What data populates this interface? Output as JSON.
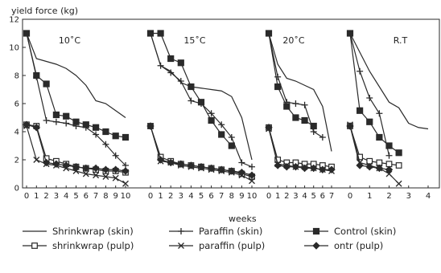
{
  "chart_data": {
    "type": "line",
    "ylabel": "yield force (kg)",
    "xlabel": "weeks",
    "ylim": [
      0,
      12
    ],
    "y_ticks": [
      "0",
      "2",
      "4",
      "6",
      "8",
      "10",
      "12"
    ],
    "grid": false,
    "legend_position": "bottom",
    "legend": [
      {
        "name": "Shrinkwrap (skin)",
        "marker": "none"
      },
      {
        "name": "shrinkwrap (pulp)",
        "marker": "square"
      },
      {
        "name": "Paraffin (skin)",
        "marker": "plus"
      },
      {
        "name": "paraffin (pulp)",
        "marker": "x"
      },
      {
        "name": "Control (skin)",
        "marker": "x-square"
      },
      {
        "name": "ontr (pulp)",
        "marker": "diamond"
      }
    ],
    "panels": [
      {
        "title": "10˚C",
        "xlim": [
          0,
          10
        ],
        "x_ticks": [
          "0",
          "1",
          "2",
          "3",
          "4",
          "5",
          "6",
          "7",
          "8",
          "9",
          "10"
        ],
        "series": [
          {
            "name": "Shrinkwrap (skin)",
            "x": [
              0,
              1,
              3,
              4,
              5,
              6,
              7,
              8,
              9,
              10
            ],
            "y": [
              11,
              9.2,
              8.8,
              8.5,
              8.0,
              7.3,
              6.2,
              6.0,
              5.5,
              5.0
            ]
          },
          {
            "name": "shrinkwrap (pulp)",
            "x": [
              0,
              1,
              2,
              3,
              4,
              5,
              6,
              7,
              8,
              9,
              10
            ],
            "y": [
              4.5,
              4.4,
              2.1,
              1.9,
              1.7,
              1.5,
              1.4,
              1.3,
              1.2,
              1.2,
              1.1
            ]
          },
          {
            "name": "Paraffin (skin)",
            "x": [
              0,
              1,
              2,
              3,
              4,
              5,
              6,
              7,
              8,
              9,
              10
            ],
            "y": [
              11,
              7.9,
              4.8,
              4.7,
              4.6,
              4.4,
              4.3,
              3.8,
              3.1,
              2.3,
              1.6
            ]
          },
          {
            "name": "paraffin (pulp)",
            "x": [
              0,
              1,
              2,
              3,
              4,
              5,
              6,
              7,
              8,
              9,
              10
            ],
            "y": [
              4.4,
              2.0,
              1.7,
              1.6,
              1.4,
              1.2,
              1.0,
              0.9,
              0.8,
              0.7,
              0.3
            ]
          },
          {
            "name": "Control (skin)",
            "x": [
              0,
              1,
              2,
              3,
              4,
              5,
              6,
              7,
              8,
              9,
              10
            ],
            "y": [
              11,
              8.0,
              7.4,
              5.2,
              5.1,
              4.7,
              4.5,
              4.3,
              4.0,
              3.7,
              3.6
            ]
          },
          {
            "name": "ontr (pulp)",
            "x": [
              0,
              1,
              2,
              3,
              4,
              5,
              6,
              7,
              8,
              9,
              10
            ],
            "y": [
              4.5,
              4.3,
              1.8,
              1.7,
              1.6,
              1.5,
              1.4,
              1.4,
              1.3,
              1.3,
              1.2
            ]
          }
        ]
      },
      {
        "title": "15˚C",
        "xlim": [
          0,
          10
        ],
        "x_ticks": [
          "0",
          "1",
          "2",
          "3",
          "4",
          "5",
          "6",
          "7",
          "8",
          "9",
          "10"
        ],
        "series": [
          {
            "name": "Shrinkwrap (skin)",
            "x": [
              0,
              1,
              2,
              3,
              4,
              5,
              6,
              7,
              8,
              9,
              10
            ],
            "y": [
              11,
              8.7,
              8.3,
              7.5,
              7.2,
              7.1,
              7.0,
              6.9,
              6.5,
              5.0,
              2.0
            ]
          },
          {
            "name": "shrinkwrap (pulp)",
            "x": [
              0,
              1,
              2,
              3,
              4,
              5,
              6,
              7,
              8,
              9,
              10
            ],
            "y": [
              4.4,
              2.2,
              1.9,
              1.7,
              1.6,
              1.5,
              1.4,
              1.3,
              1.2,
              1.0,
              0.8
            ]
          },
          {
            "name": "Paraffin (skin)",
            "x": [
              0,
              1,
              2,
              3,
              4,
              5,
              6,
              7,
              8,
              9,
              10
            ],
            "y": [
              11,
              8.7,
              8.2,
              7.6,
              6.2,
              6.0,
              5.3,
              4.5,
              3.6,
              1.8,
              1.5
            ]
          },
          {
            "name": "paraffin (pulp)",
            "x": [
              0,
              1,
              2,
              3,
              4,
              5,
              6,
              7,
              8,
              9,
              10
            ],
            "y": [
              4.4,
              1.9,
              1.8,
              1.6,
              1.5,
              1.4,
              1.3,
              1.2,
              1.1,
              0.9,
              0.5
            ]
          },
          {
            "name": "Control (skin)",
            "x": [
              0,
              1,
              2,
              3,
              4,
              5,
              6,
              7,
              8
            ],
            "y": [
              11,
              11,
              9.2,
              8.9,
              7.2,
              6.1,
              4.8,
              3.8,
              3.0
            ]
          },
          {
            "name": "ontr (pulp)",
            "x": [
              0,
              1,
              2,
              3,
              4,
              5,
              6,
              7,
              8,
              9,
              10
            ],
            "y": [
              4.4,
              2.0,
              1.8,
              1.7,
              1.6,
              1.5,
              1.4,
              1.3,
              1.2,
              1.1,
              0.9
            ]
          }
        ]
      },
      {
        "title": "20˚C",
        "xlim": [
          0,
          7
        ],
        "x_ticks": [
          "0",
          "1",
          "2",
          "3",
          "4",
          "5",
          "6",
          "7"
        ],
        "series": [
          {
            "name": "Shrinkwrap (skin)",
            "x": [
              0,
              1,
              2,
              3,
              4,
              5,
              6,
              7
            ],
            "y": [
              11,
              8.8,
              7.8,
              7.6,
              7.3,
              7.0,
              5.8,
              2.6
            ]
          },
          {
            "name": "shrinkwrap (pulp)",
            "x": [
              0,
              1,
              2,
              3,
              4,
              5,
              6,
              7
            ],
            "y": [
              4.3,
              2.0,
              1.8,
              1.8,
              1.7,
              1.7,
              1.6,
              1.5
            ]
          },
          {
            "name": "Paraffin (skin)",
            "x": [
              0,
              1,
              2,
              3,
              4,
              5,
              6
            ],
            "y": [
              11,
              7.9,
              6.1,
              6.0,
              5.9,
              4.0,
              3.6
            ]
          },
          {
            "name": "paraffin (pulp)",
            "x": [
              0,
              1,
              2,
              3,
              4,
              5,
              6,
              7
            ],
            "y": [
              4.2,
              1.7,
              1.6,
              1.5,
              1.5,
              1.4,
              1.3,
              1.2
            ]
          },
          {
            "name": "Control (skin)",
            "x": [
              0,
              1,
              2,
              3,
              4,
              5
            ],
            "y": [
              11,
              7.2,
              5.8,
              5.0,
              4.8,
              4.4
            ]
          },
          {
            "name": "ontr (pulp)",
            "x": [
              0,
              1,
              2,
              3,
              4,
              5,
              6,
              7
            ],
            "y": [
              4.3,
              1.6,
              1.5,
              1.5,
              1.4,
              1.4,
              1.3,
              1.3
            ]
          }
        ]
      },
      {
        "title": "R.T",
        "xlim": [
          0,
          4
        ],
        "x_ticks": [
          "0",
          "1",
          "2",
          "3",
          "4"
        ],
        "series": [
          {
            "name": "Shrinkwrap (skin)",
            "x": [
              0,
              1,
              2,
              2.5,
              3,
              3.5,
              4
            ],
            "y": [
              11,
              8.3,
              6.1,
              5.7,
              4.6,
              4.3,
              4.2
            ]
          },
          {
            "name": "shrinkwrap (pulp)",
            "x": [
              0,
              0.5,
              1,
              1.5,
              2,
              2.5
            ],
            "y": [
              4.4,
              2.2,
              1.9,
              1.8,
              1.7,
              1.6
            ]
          },
          {
            "name": "Paraffin (skin)",
            "x": [
              0,
              0.5,
              1,
              1.5,
              2
            ],
            "y": [
              11,
              8.3,
              6.4,
              5.3,
              2.3
            ]
          },
          {
            "name": "paraffin (pulp)",
            "x": [
              0,
              0.5,
              1,
              1.5,
              2,
              2.5
            ],
            "y": [
              4.5,
              1.8,
              1.6,
              1.4,
              1.0,
              0.3
            ]
          },
          {
            "name": "Control (skin)",
            "x": [
              0,
              0.5,
              1,
              1.5,
              2,
              2.5
            ],
            "y": [
              11,
              5.5,
              4.7,
              3.6,
              3.0,
              2.5
            ]
          },
          {
            "name": "ontr (pulp)",
            "x": [
              0,
              0.5,
              1,
              1.5,
              2
            ],
            "y": [
              4.4,
              1.6,
              1.5,
              1.4,
              1.3
            ]
          }
        ]
      }
    ]
  }
}
